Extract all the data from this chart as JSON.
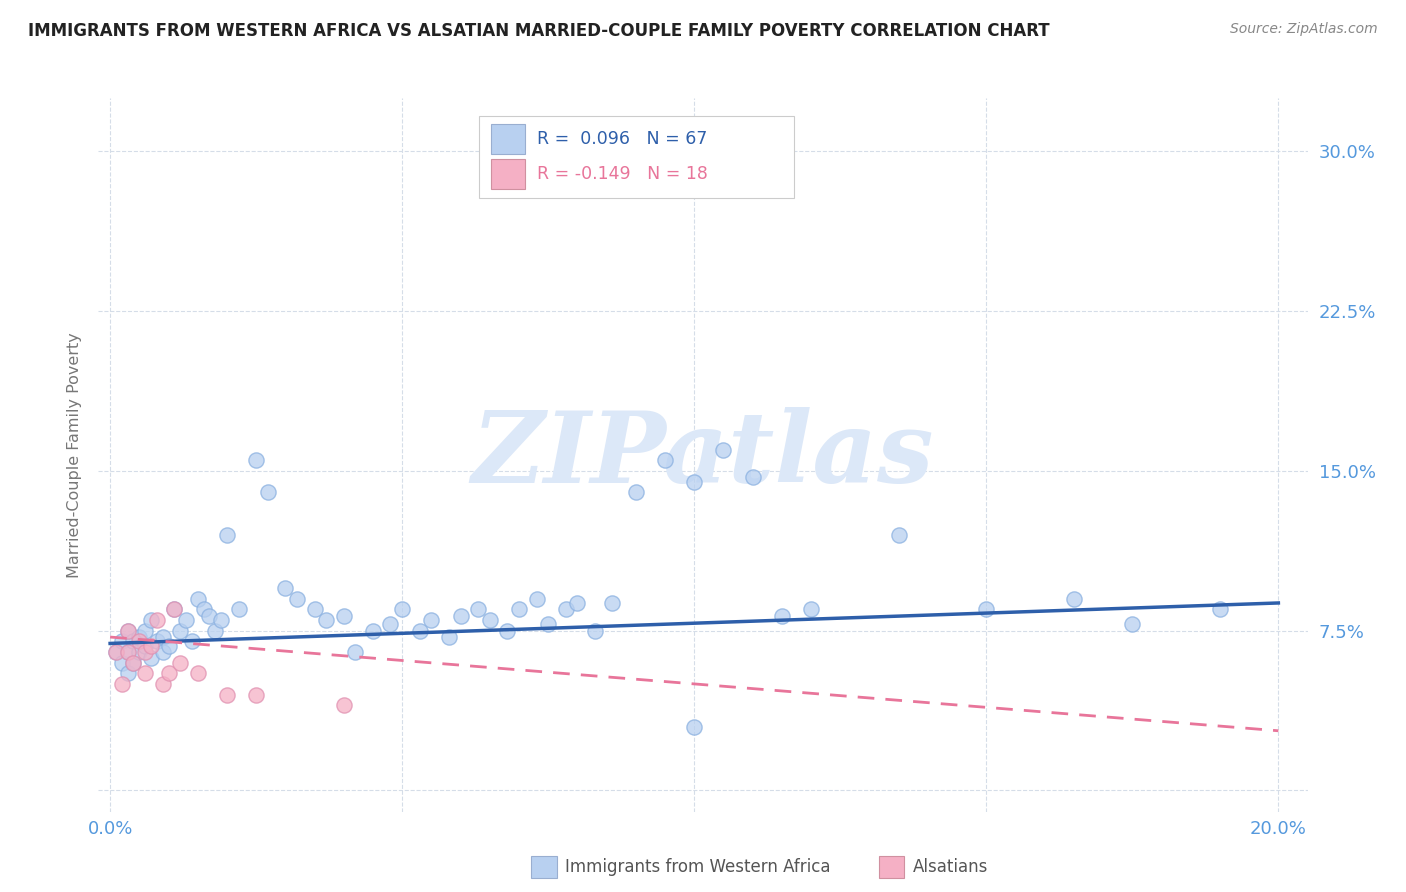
{
  "title": "IMMIGRANTS FROM WESTERN AFRICA VS ALSATIAN MARRIED-COUPLE FAMILY POVERTY CORRELATION CHART",
  "source": "Source: ZipAtlas.com",
  "ylabel": "Married-Couple Family Poverty",
  "yticks": [
    0.0,
    0.075,
    0.15,
    0.225,
    0.3
  ],
  "ytick_labels": [
    "",
    "7.5%",
    "15.0%",
    "22.5%",
    "30.0%"
  ],
  "xticks": [
    0.0,
    0.05,
    0.1,
    0.15,
    0.2
  ],
  "xtick_labels": [
    "0.0%",
    "",
    "",
    "",
    "20.0%"
  ],
  "xlim": [
    -0.002,
    0.205
  ],
  "ylim": [
    -0.01,
    0.325
  ],
  "series1_color": "#b8d0f0",
  "series2_color": "#f5b0c5",
  "trendline1_color": "#2e5faa",
  "trendline2_color": "#e8759a",
  "watermark": "ZIPatlas",
  "watermark_color": "#dce8f8",
  "blue_label_color": "#5599dd",
  "axis_label_color": "#777777",
  "grid_color": "#d5dde8",
  "scatter1_x": [
    0.001,
    0.002,
    0.002,
    0.003,
    0.003,
    0.003,
    0.004,
    0.004,
    0.005,
    0.005,
    0.006,
    0.006,
    0.007,
    0.007,
    0.008,
    0.009,
    0.009,
    0.01,
    0.011,
    0.012,
    0.013,
    0.014,
    0.015,
    0.016,
    0.017,
    0.018,
    0.019,
    0.02,
    0.022,
    0.025,
    0.027,
    0.03,
    0.032,
    0.035,
    0.037,
    0.04,
    0.042,
    0.045,
    0.048,
    0.05,
    0.053,
    0.055,
    0.058,
    0.06,
    0.063,
    0.065,
    0.068,
    0.07,
    0.073,
    0.075,
    0.078,
    0.08,
    0.083,
    0.086,
    0.09,
    0.095,
    0.1,
    0.105,
    0.11,
    0.115,
    0.12,
    0.135,
    0.15,
    0.165,
    0.175,
    0.19,
    0.1
  ],
  "scatter1_y": [
    0.065,
    0.06,
    0.07,
    0.065,
    0.055,
    0.075,
    0.06,
    0.07,
    0.065,
    0.072,
    0.068,
    0.075,
    0.062,
    0.08,
    0.07,
    0.072,
    0.065,
    0.068,
    0.085,
    0.075,
    0.08,
    0.07,
    0.09,
    0.085,
    0.082,
    0.075,
    0.08,
    0.12,
    0.085,
    0.155,
    0.14,
    0.095,
    0.09,
    0.085,
    0.08,
    0.082,
    0.065,
    0.075,
    0.078,
    0.085,
    0.075,
    0.08,
    0.072,
    0.082,
    0.085,
    0.08,
    0.075,
    0.085,
    0.09,
    0.078,
    0.085,
    0.088,
    0.075,
    0.088,
    0.14,
    0.155,
    0.145,
    0.16,
    0.147,
    0.082,
    0.085,
    0.12,
    0.085,
    0.09,
    0.078,
    0.085,
    0.03
  ],
  "scatter2_x": [
    0.001,
    0.002,
    0.003,
    0.003,
    0.004,
    0.005,
    0.006,
    0.006,
    0.007,
    0.008,
    0.009,
    0.01,
    0.011,
    0.012,
    0.015,
    0.02,
    0.025,
    0.04
  ],
  "scatter2_y": [
    0.065,
    0.05,
    0.065,
    0.075,
    0.06,
    0.07,
    0.055,
    0.065,
    0.068,
    0.08,
    0.05,
    0.055,
    0.085,
    0.06,
    0.055,
    0.045,
    0.045,
    0.04
  ],
  "trendline1_x0": 0.0,
  "trendline1_x1": 0.2,
  "trendline1_y0": 0.069,
  "trendline1_y1": 0.088,
  "trendline2_x0": 0.0,
  "trendline2_x1": 0.2,
  "trendline2_y0": 0.072,
  "trendline2_y1": 0.028,
  "scatter_size": 120,
  "scatter_alpha": 0.75,
  "legend_label1": "Immigrants from Western Africa",
  "legend_label2": "Alsatians"
}
